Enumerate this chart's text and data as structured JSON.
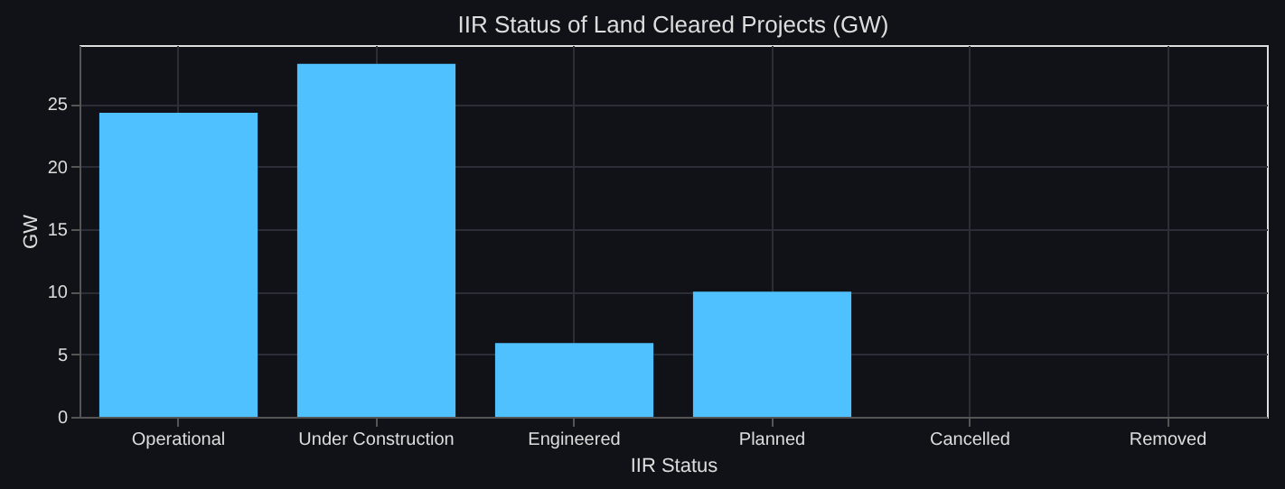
{
  "chart_data": {
    "type": "bar",
    "title": "IIR Status of Land Cleared Projects (GW)",
    "xlabel": "IIR Status",
    "ylabel": "GW",
    "categories": [
      "Operational",
      "Under Construction",
      "Engineered",
      "Planned",
      "Cancelled",
      "Removed"
    ],
    "values": [
      24.3,
      28.2,
      5.9,
      10,
      0,
      0
    ],
    "color": "#4fc1ff",
    "ylim": [
      0,
      29.7
    ],
    "yticks": [
      0,
      5,
      10,
      15,
      20,
      25
    ],
    "grid": true
  }
}
